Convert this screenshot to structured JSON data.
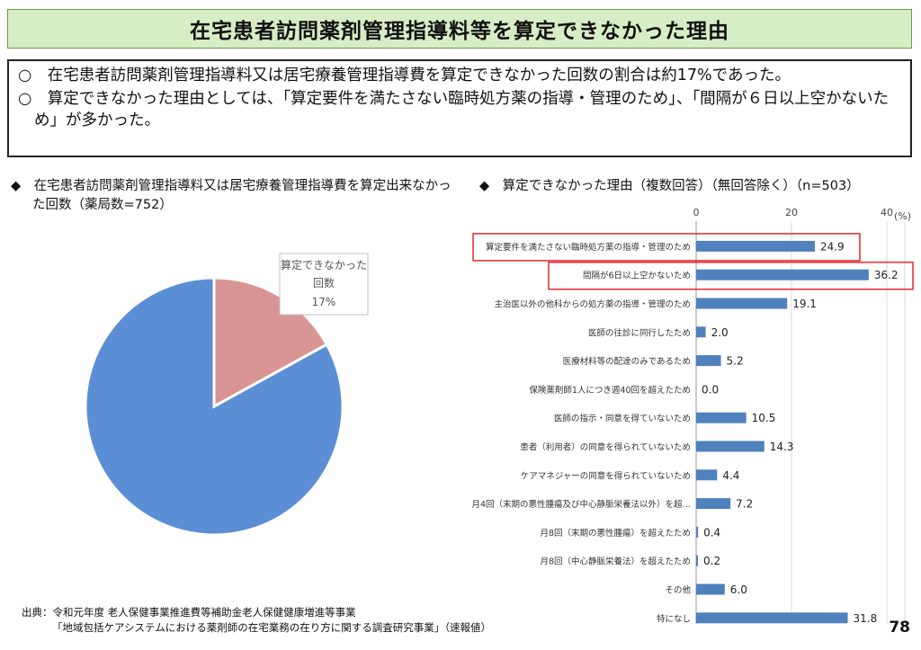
{
  "title": "在宅患者訪問薬剤管理指導料等を算定できなかった理由",
  "summary": [
    "○　在宅患者訪問薬剤管理指導料又は居宅療養管理指導費を算定できなかった回数の割合は約17%であった。",
    "○　算定できなかった理由としては、「算定要件を満たさない臨時処方薬の指導・管理のため」、「間隔が６日以上空かないため」が多かった。"
  ],
  "left_heading": "◆　在宅患者訪問薬剤管理指導料又は居宅療養管理指導費を算定出来なかった回数（薬局数=752）",
  "right_heading": "◆　算定できなかった理由（複数回答）（無回答除く）（n=503）",
  "source_line1": "出典：令和元年度 老人保健事業推進費等補助金老人保健健康増進等事業",
  "source_line2": "「地域包括ケアシステムにおける薬剤師の在宅業務の在り方に関する調査研究事業」（速報値）",
  "page_number": "78",
  "colors": {
    "title_bg": "#d7edc5",
    "pie_main": "#5b8ed4",
    "pie_slice": "#d99594",
    "bar": "#4f81bd",
    "highlight": "#e8262b"
  },
  "chart_data": [
    {
      "type": "pie",
      "slices": [
        {
          "label": "",
          "value": 83
        },
        {
          "label": "算定できなかった回数",
          "value": 17,
          "value_label": "17%"
        }
      ]
    },
    {
      "type": "bar",
      "orientation": "horizontal",
      "categories": [
        "算定要件を満たさない臨時処方薬の指導・管理のため",
        "間隔が6日以上空かないため",
        "主治医以外の他科からの処方薬の指導・管理のため",
        "医師の往診に同行したため",
        "医療材料等の配達のみであるため",
        "保険薬剤師1人につき週40回を超えたため",
        "医師の指示・同意を得ていないため",
        "患者（利用者）の同意を得られていないため",
        "ケアマネジャーの同意を得られていないため",
        "月4回（末期の悪性腫瘍及び中心静脈栄養法以外）を超…",
        "月8回（末期の悪性腫瘍）を超えたため",
        "月8回（中心静脈栄養法）を超えたため",
        "その他",
        "特になし"
      ],
      "values": [
        24.9,
        36.2,
        19.1,
        2.0,
        5.2,
        0.0,
        10.5,
        14.3,
        4.4,
        7.2,
        0.4,
        0.2,
        6.0,
        31.8
      ],
      "value_labels": [
        "24.9",
        "36.2",
        "19.1",
        "2.0",
        "5.2",
        "0.0",
        "10.5",
        "14.3",
        "4.4",
        "7.2",
        "0.4",
        "0.2",
        "6.0",
        "31.8"
      ],
      "xticks": [
        "0",
        "20",
        "40"
      ],
      "xtick_values": [
        0,
        20,
        40
      ],
      "unit": "(%)",
      "xlim": [
        0,
        40
      ],
      "highlighted": [
        0,
        1
      ],
      "grid": true
    }
  ]
}
